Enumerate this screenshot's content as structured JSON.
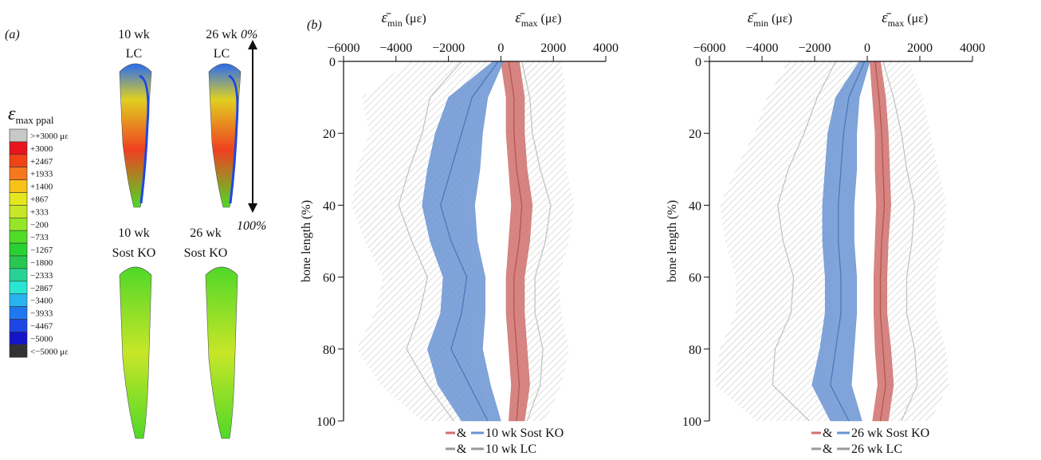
{
  "panel_a": {
    "label": "(a)",
    "bones": [
      {
        "line1": "10 wk",
        "line2": "LC"
      },
      {
        "line1": "26 wk",
        "line2": "LC"
      },
      {
        "line1": "10 wk",
        "line2": "Sost KO"
      },
      {
        "line1": "26 wk",
        "line2": "Sost KO"
      }
    ],
    "arrow_top": "0%",
    "arrow_bottom": "100%",
    "colorbar_title": {
      "symbol": "ε",
      "sub": "max ppal"
    },
    "colorbar": [
      {
        "label": ">+3000 με",
        "color": "#c8c8c8"
      },
      {
        "label": "+3000",
        "color": "#e8141c"
      },
      {
        "label": "+2467",
        "color": "#f04418"
      },
      {
        "label": "+1933",
        "color": "#f5781e"
      },
      {
        "label": "+1400",
        "color": "#f8c21a"
      },
      {
        "label": "+867",
        "color": "#e6e61e"
      },
      {
        "label": "+333",
        "color": "#c8e628"
      },
      {
        "label": "−200",
        "color": "#96e628"
      },
      {
        "label": "−733",
        "color": "#50dc28"
      },
      {
        "label": "−1267",
        "color": "#28d232"
      },
      {
        "label": "−1800",
        "color": "#28c850"
      },
      {
        "label": "−2333",
        "color": "#28d296"
      },
      {
        "label": "−2867",
        "color": "#28e6d2"
      },
      {
        "label": "−3400",
        "color": "#28b4f0"
      },
      {
        "label": "−3933",
        "color": "#1e78f0"
      },
      {
        "label": "−4467",
        "color": "#1e46e6"
      },
      {
        "label": "−5000",
        "color": "#1414c8"
      },
      {
        "label": "<−5000 με",
        "color": "#323232"
      }
    ]
  },
  "chart_data": [
    {
      "type": "band",
      "panel_label": "(b)",
      "xlabel_min": {
        "symbol": "ε̄",
        "sub": "min",
        "unit": "(με)"
      },
      "xlabel_max": {
        "symbol": "ε̄",
        "sub": "max",
        "unit": "(με)"
      },
      "ylabel": "bone length (%)",
      "xlim": [
        -6000,
        4000
      ],
      "xticks": [
        {
          "value": -6000,
          "label": "−6000"
        },
        {
          "value": -4000,
          "label": "−4000"
        },
        {
          "value": -2000,
          "label": "−2000"
        },
        0,
        2000,
        4000
      ],
      "ylim": [
        0,
        100
      ],
      "yticks": [
        0,
        20,
        40,
        60,
        80,
        100
      ],
      "y_inverted": true,
      "y": [
        0,
        10,
        20,
        30,
        40,
        50,
        60,
        70,
        80,
        90,
        100
      ],
      "legend_joiner": "&",
      "series": [
        {
          "name": "10 wk LC",
          "color": "#9a9a9a",
          "hatched": true,
          "values": [
            -1500,
            -2700,
            -3000,
            -3500,
            -3900,
            -3400,
            -2800,
            -3100,
            -3600,
            -2800,
            -1800
          ],
          "lower": [
            -3500,
            -5300,
            -5000,
            -5500,
            -5700,
            -5200,
            -4500,
            -4800,
            -5500,
            -4600,
            -3000
          ],
          "upper": [
            -300,
            -800,
            -1000,
            -1200,
            -1500,
            -1200,
            -900,
            -1000,
            -1200,
            -800,
            -300
          ]
        },
        {
          "name": "10 wk LC",
          "color": "#9a9a9a",
          "hatched": true,
          "values": [
            800,
            1100,
            1200,
            1500,
            1900,
            1700,
            1300,
            1300,
            1600,
            1500,
            1000
          ],
          "lower": [
            300,
            300,
            300,
            400,
            500,
            400,
            300,
            300,
            400,
            400,
            300
          ],
          "upper": [
            2300,
            2500,
            2400,
            2500,
            2800,
            2600,
            2200,
            2300,
            2600,
            2300,
            1700
          ]
        },
        {
          "name": "10 wk Sost KO",
          "color": "#d0706c",
          "hatched": false,
          "values": [
            300,
            500,
            500,
            600,
            800,
            700,
            500,
            500,
            600,
            700,
            600
          ],
          "lower": [
            0,
            200,
            200,
            300,
            400,
            300,
            200,
            200,
            300,
            400,
            300
          ],
          "upper": [
            700,
            900,
            900,
            1000,
            1200,
            1100,
            900,
            900,
            1000,
            1100,
            900
          ]
        },
        {
          "name": "10 wk Sost KO",
          "color": "#6a94d2",
          "hatched": false,
          "values": [
            -100,
            -1100,
            -1500,
            -1900,
            -2300,
            -1900,
            -1300,
            -1500,
            -1900,
            -1200,
            -500
          ],
          "lower": [
            -300,
            -2000,
            -2500,
            -2800,
            -3000,
            -2700,
            -2200,
            -2300,
            -2800,
            -2400,
            -1500
          ],
          "upper": [
            100,
            -500,
            -700,
            -800,
            -1000,
            -900,
            -600,
            -600,
            -700,
            -400,
            0
          ]
        }
      ]
    },
    {
      "type": "band",
      "xlabel_min": {
        "symbol": "ε̄",
        "sub": "min",
        "unit": "(με)"
      },
      "xlabel_max": {
        "symbol": "ε̄",
        "sub": "max",
        "unit": "(με)"
      },
      "ylabel": "bone length (%)",
      "xlim": [
        -6000,
        4000
      ],
      "xticks": [
        {
          "value": -6000,
          "label": "−6000"
        },
        {
          "value": -4000,
          "label": "−4000"
        },
        {
          "value": -2000,
          "label": "−2000"
        },
        0,
        2000,
        4000
      ],
      "ylim": [
        0,
        100
      ],
      "yticks": [
        0,
        20,
        40,
        60,
        80,
        100
      ],
      "y_inverted": true,
      "y": [
        0,
        10,
        20,
        30,
        40,
        50,
        60,
        70,
        80,
        90,
        100
      ],
      "legend_joiner": "&",
      "series": [
        {
          "name": "26 wk LC",
          "color": "#9a9a9a",
          "hatched": true,
          "values": [
            -1200,
            -1900,
            -2400,
            -3000,
            -3400,
            -3200,
            -2800,
            -2900,
            -3500,
            -3600,
            -2200
          ],
          "lower": [
            -3000,
            -3800,
            -4300,
            -5000,
            -5600,
            -5400,
            -5000,
            -5000,
            -5600,
            -5800,
            -4200
          ],
          "upper": [
            -300,
            -900,
            -1100,
            -1400,
            -1700,
            -1500,
            -1300,
            -1300,
            -1600,
            -1800,
            -800
          ]
        },
        {
          "name": "26 wk LC",
          "color": "#9a9a9a",
          "hatched": true,
          "values": [
            600,
            1000,
            1300,
            1500,
            1800,
            1700,
            1500,
            1500,
            1800,
            1900,
            1300
          ],
          "lower": [
            200,
            300,
            400,
            450,
            500,
            450,
            400,
            400,
            500,
            550,
            350
          ],
          "upper": [
            1600,
            2100,
            2400,
            2700,
            3000,
            2900,
            2600,
            2600,
            3000,
            3100,
            2400
          ]
        },
        {
          "name": "26 wk Sost KO",
          "color": "#d0706c",
          "hatched": false,
          "values": [
            300,
            450,
            550,
            600,
            650,
            550,
            500,
            500,
            600,
            700,
            500
          ],
          "lower": [
            100,
            200,
            300,
            300,
            350,
            300,
            250,
            250,
            300,
            400,
            200
          ],
          "upper": [
            500,
            700,
            800,
            850,
            900,
            800,
            750,
            750,
            900,
            1000,
            800
          ]
        },
        {
          "name": "26 wk Sost KO",
          "color": "#6a94d2",
          "hatched": false,
          "values": [
            -100,
            -700,
            -900,
            -1000,
            -1100,
            -1100,
            -1000,
            -1000,
            -1200,
            -1400,
            -700
          ],
          "lower": [
            -300,
            -1200,
            -1500,
            -1600,
            -1700,
            -1700,
            -1600,
            -1600,
            -1800,
            -2100,
            -1400
          ],
          "upper": [
            100,
            -300,
            -400,
            -400,
            -500,
            -500,
            -400,
            -400,
            -500,
            -600,
            -200
          ]
        }
      ]
    }
  ]
}
